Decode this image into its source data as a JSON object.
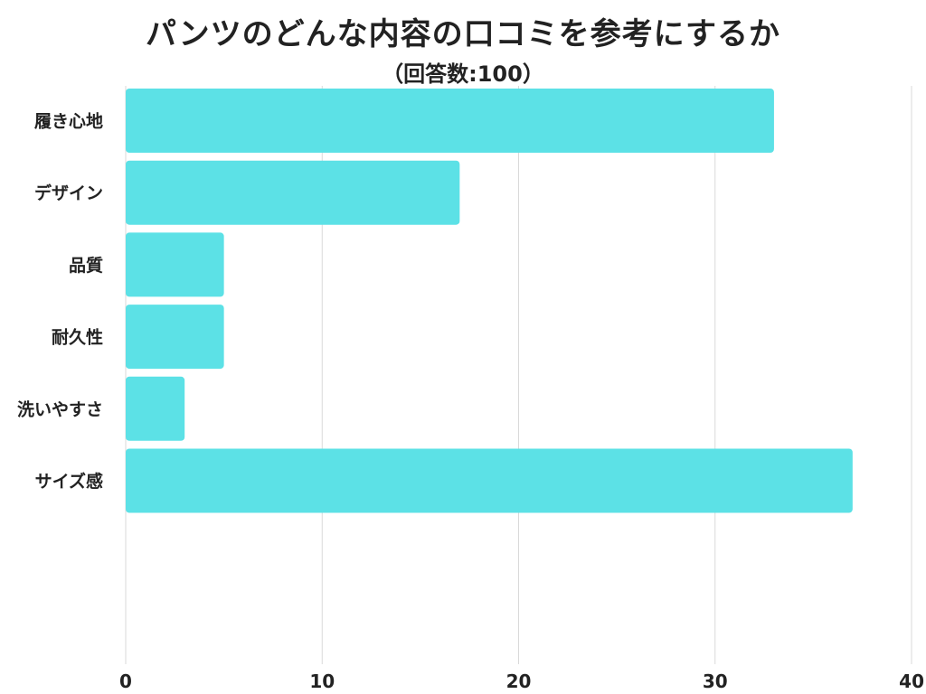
{
  "chart_data": {
    "type": "bar",
    "orientation": "horizontal",
    "title": "パンツのどんな内容の口コミを参考にするか",
    "subtitle": "（回答数:100）",
    "categories": [
      "履き心地",
      "デザイン",
      "品質",
      "耐久性",
      "洗いやすさ",
      "サイズ感"
    ],
    "values": [
      33,
      17,
      5,
      5,
      3,
      37
    ],
    "xlim": [
      0,
      40
    ],
    "xticks": [
      0,
      10,
      20,
      30,
      40
    ],
    "grid": true,
    "legend": "none",
    "bar_color": "#5ce1e6",
    "grid_color": "#d9d9d9"
  }
}
